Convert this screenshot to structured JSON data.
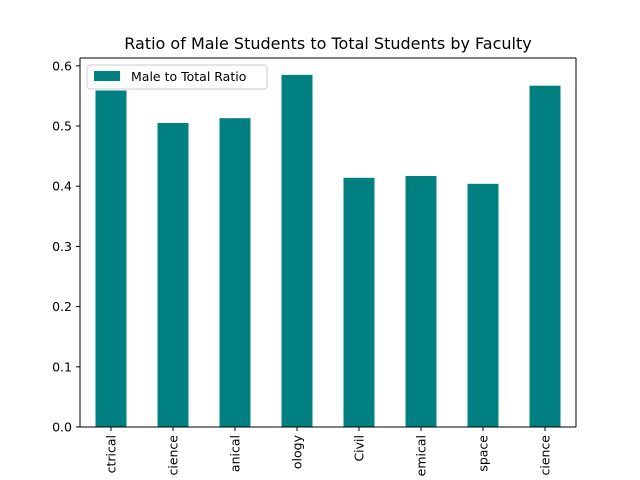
{
  "chart_data": {
    "type": "bar",
    "title": "Ratio of Male Students to Total Students by Faculty",
    "xlabel": "",
    "ylabel": "",
    "categories": [
      "ctrical",
      "cience",
      "anical",
      "ology",
      "Civil",
      "emical",
      "space",
      "cience"
    ],
    "series": [
      {
        "name": "Male to Total Ratio",
        "values": [
          0.559,
          0.505,
          0.513,
          0.585,
          0.414,
          0.417,
          0.404,
          0.567
        ],
        "color": "#008080"
      }
    ],
    "ylim": [
      0,
      0.6
    ],
    "yticks": [
      0.0,
      0.1,
      0.2,
      0.3,
      0.4,
      0.5,
      0.6
    ],
    "ytick_labels": [
      "0.0",
      "0.1",
      "0.2",
      "0.3",
      "0.4",
      "0.5",
      "0.6"
    ],
    "grid": false,
    "legend": {
      "placement": "top-left"
    }
  }
}
